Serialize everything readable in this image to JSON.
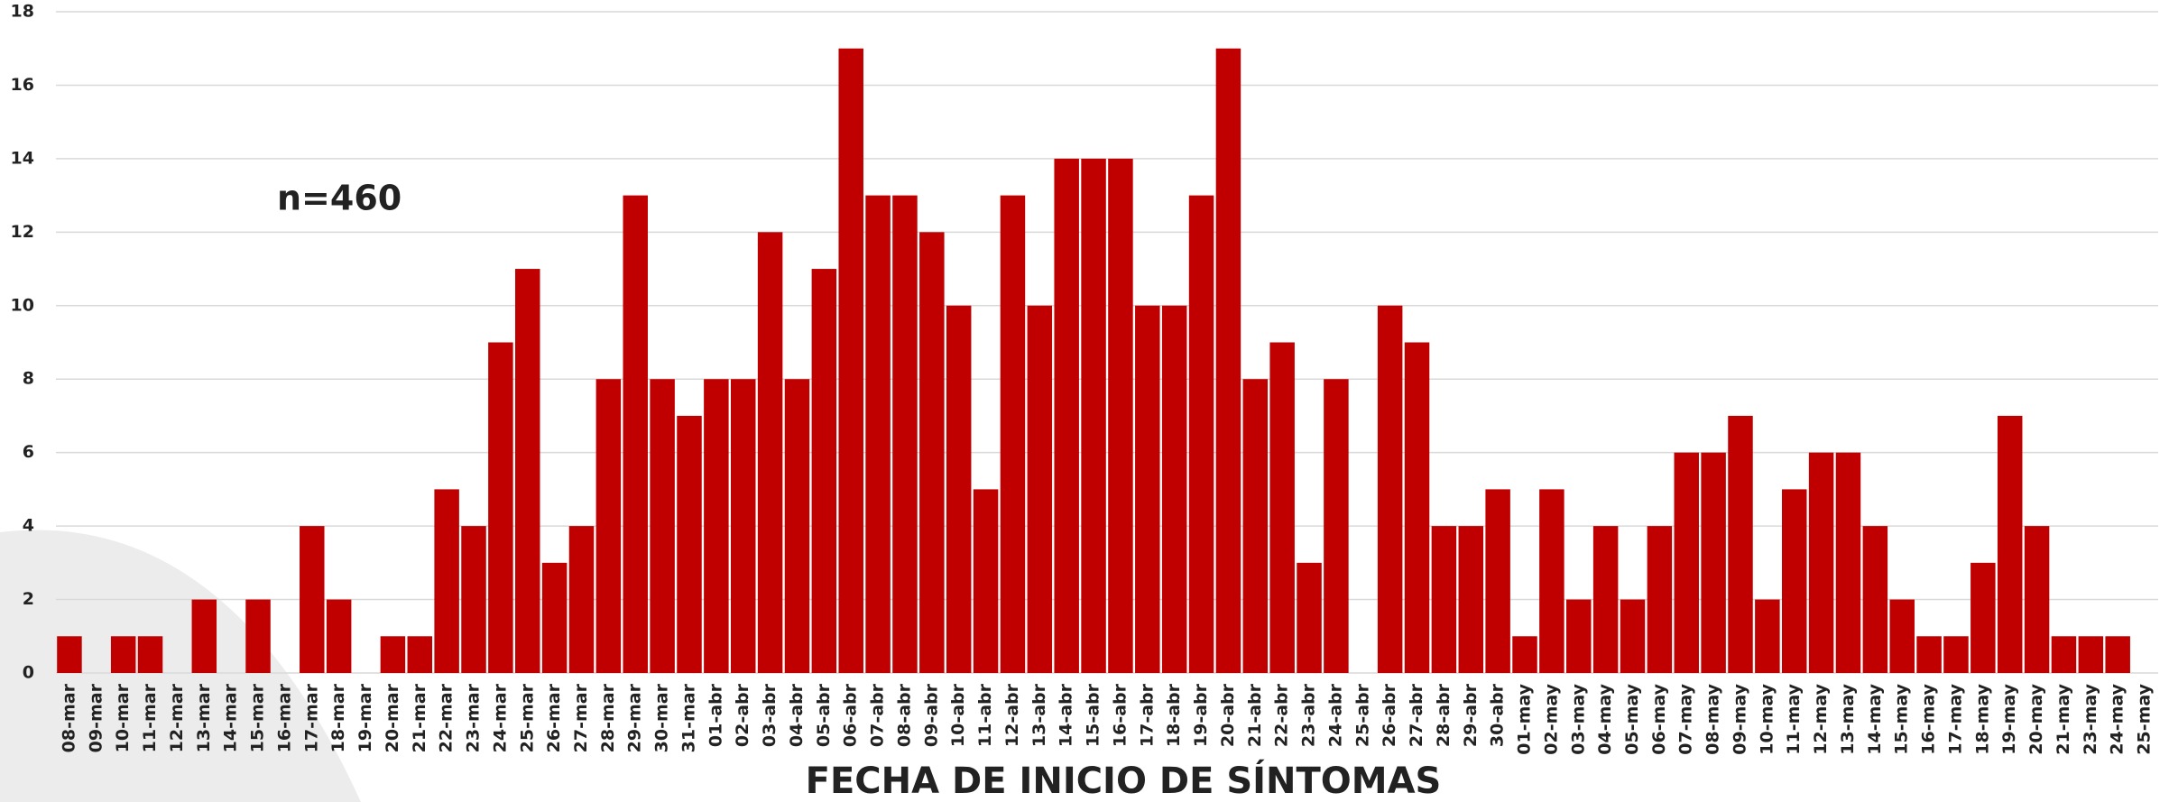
{
  "chart_data": {
    "type": "bar",
    "x_label": "FECHA DE INICIO DE SÍNTOMAS",
    "annotation": "n=460",
    "categories": [
      "08-mar",
      "09-mar",
      "10-mar",
      "11-mar",
      "12-mar",
      "13-mar",
      "14-mar",
      "15-mar",
      "16-mar",
      "17-mar",
      "18-mar",
      "19-mar",
      "20-mar",
      "21-mar",
      "22-mar",
      "23-mar",
      "24-mar",
      "25-mar",
      "26-mar",
      "27-mar",
      "28-mar",
      "29-mar",
      "30-mar",
      "31-mar",
      "01-abr",
      "02-abr",
      "03-abr",
      "04-abr",
      "05-abr",
      "06-abr",
      "07-abr",
      "08-abr",
      "09-abr",
      "10-abr",
      "11-abr",
      "12-abr",
      "13-abr",
      "14-abr",
      "15-abr",
      "16-abr",
      "17-abr",
      "18-abr",
      "19-abr",
      "20-abr",
      "21-abr",
      "22-abr",
      "23-abr",
      "24-abr",
      "25-abr",
      "26-abr",
      "27-abr",
      "28-abr",
      "29-abr",
      "30-abr",
      "01-may",
      "02-may",
      "03-may",
      "04-may",
      "05-may",
      "06-may",
      "07-may",
      "08-may",
      "09-may",
      "10-may",
      "11-may",
      "12-may",
      "13-may",
      "14-may",
      "15-may",
      "16-may",
      "17-may",
      "18-may",
      "19-may",
      "20-may",
      "21-may",
      "23-may",
      "24-may",
      "25-may"
    ],
    "values": [
      1,
      0,
      1,
      1,
      0,
      2,
      0,
      2,
      0,
      4,
      2,
      0,
      1,
      1,
      5,
      4,
      9,
      11,
      3,
      4,
      8,
      13,
      8,
      7,
      8,
      8,
      12,
      8,
      11,
      17,
      13,
      13,
      12,
      10,
      5,
      13,
      10,
      14,
      14,
      14,
      10,
      10,
      13,
      17,
      8,
      9,
      3,
      8,
      0,
      10,
      9,
      4,
      4,
      5,
      1,
      5,
      2,
      4,
      2,
      4,
      6,
      6,
      7,
      2,
      5,
      6,
      6,
      4,
      2,
      1,
      1,
      3,
      7,
      4,
      1,
      1,
      1,
      0
    ],
    "color": "#c00000",
    "ylim": [
      0,
      18
    ],
    "yticks": [
      0,
      2,
      4,
      6,
      8,
      10,
      12,
      14,
      16,
      18
    ],
    "grid": true
  }
}
